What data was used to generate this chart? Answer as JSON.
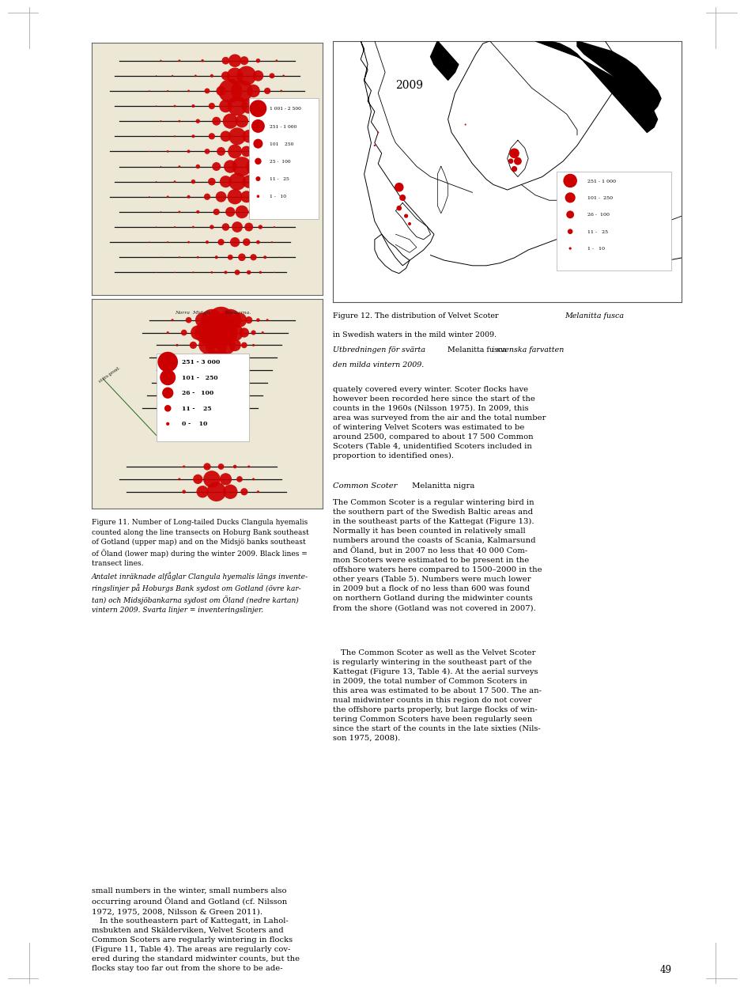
{
  "page_background": "#ffffff",
  "page_width": 9.6,
  "page_height": 12.85,
  "fig11_caption_en": "Figure 11. Number of Long-tailed Ducks Clangula hyemalis\ncounted along the line transects on Hoburg Bank southeast\nof Gotland (upper map) and on the Midsjö banks southeast\nof Öland (lower map) during the winter 2009. Black lines =\ntransect lines.",
  "fig11_caption_sv": "Antalet inräknade alfåglar Clangula hyemalis längs invente-\nringslinjer på Hoburgs Bank sydost om Gotland (övre kar-\ntan) och Midsjöbankarna sydost om Öland (nedre kartan)\nvintern 2009. Svarta linjer = inventeringslinjer.",
  "fig12_caption_line1": "Figure 12. The distribution of Velvet Scoter ",
  "fig12_caption_italic": "Melanitta fusca",
  "fig12_caption_line2": "in Swedish waters in the mild winter 2009.",
  "fig12_caption_sv_italic": "Utbredningen för svärta",
  "fig12_caption_sv_roman": " Melanitta fusca ",
  "fig12_caption_sv_italic2": "i svenska farvatten",
  "fig12_caption_sv_line2": "den milda vintern 2009.",
  "body_text_1": "quately covered every winter. Scoter flocks have\nhowever been recorded here since the start of the\ncounts in the 1960s (Nilsson 1975). In 2009, this\narea was surveyed from the air and the total number\nof wintering Velvet Scoters was estimated to be\naround 2500, compared to about 17 500 Common\nScoters (Table 4, unidentified Scoters included in\nproportion to identified ones).",
  "body_heading_species": "Common Scoter",
  "body_heading_latin": "Melanitta nigra",
  "body_text_2": "The Common Scoter is a regular wintering bird in\nthe southern part of the Swedish Baltic areas and\nin the southeast parts of the Kattegat (Figure 13).\nNormally it has been counted in relatively small\nnumbers around the coasts of Scania, Kalmarsund\nand Öland, but in 2007 no less that 40 000 Com-\nmon Scoters were estimated to be present in the\noffshore waters here compared to 1500–2000 in the\nother years (Table 5). Numbers were much lower\nin 2009 but a flock of no less than 600 was found\non northern Gotland during the midwinter counts\nfrom the shore (Gotland was not covered in 2007).",
  "body_text_3": " The Common Scoter as well as the Velvet Scoter\nis regularly wintering in the southeast part of the\nKattegat (Figure 13, Table 4). At the aerial surveys\nin 2009, the total number of Common Scoters in\nthis area was estimated to be about 17 500. The an-\nnual midwinter counts in this region do not cover\nthe offshore parts properly, but large flocks of win-\ntering Common Scoters have been regularly seen\nsince the start of the counts in the late sixties (Nils-\nson 1975, 2008).",
  "text_left_para": "small numbers in the winter, small numbers also\noccurring around Öland and Gotland (cf. Nilsson\n1972, 1975, 2008, Nilsson & Green 2011).\n In the southeastern part of Kattegatt, in Lahol-\nmsbukten and Skälderviken, Velvet Scoters and\nCommon Scoters are regularly wintering in flocks\n(Figure 11, Table 4). The areas are regularly cov-\nered during the standard midwinter counts, but the\nflocks stay too far out from the shore to be ade-",
  "page_number": "49",
  "upper_map_legend": [
    {
      "label": "1 001 - 2 500",
      "r": 9.0
    },
    {
      "label": "251 - 1 000",
      "r": 7.0
    },
    {
      "label": "101    250",
      "r": 5.0
    },
    {
      "label": "25 -  100",
      "r": 3.5
    },
    {
      "label": "11 -   25",
      "r": 2.5
    },
    {
      "label": "1 -   10",
      "r": 1.5
    }
  ],
  "lower_map_legend": [
    {
      "label": "251 - 3 000",
      "r": 9.0
    },
    {
      "label": "101 -   250",
      "r": 7.0
    },
    {
      "label": "26 -   100",
      "r": 5.0
    },
    {
      "label": "11 -    25",
      "r": 3.0
    },
    {
      "label": "0 -    10",
      "r": 1.5
    }
  ],
  "right_map_legend": [
    {
      "label": "251 - 1 000",
      "r": 8.0
    },
    {
      "label": "101 -  250",
      "r": 6.0
    },
    {
      "label": "26 -  100",
      "r": 4.5
    },
    {
      "label": "11 -   25",
      "r": 3.0
    },
    {
      "label": "1 -   10",
      "r": 1.5
    }
  ],
  "map_bg_color": "#ede8d5",
  "map_border_color": "#888888",
  "dot_color": "#cc0000",
  "line_color": "#111111"
}
